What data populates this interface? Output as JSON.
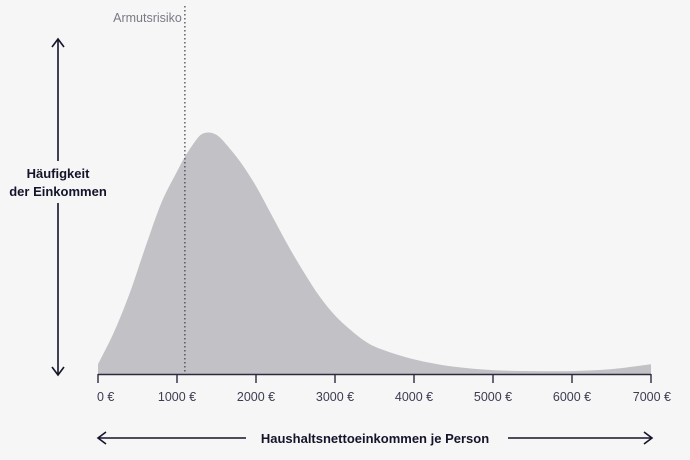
{
  "chart_data": {
    "type": "area",
    "title": "",
    "xlabel": "Haushaltsnettoeinkommen je Person",
    "ylabel_lines": [
      "Häufigkeit",
      "der Einkommen"
    ],
    "xlim": [
      0,
      7000
    ],
    "x_ticks": [
      0,
      1000,
      2000,
      3000,
      4000,
      5000,
      6000,
      7000
    ],
    "x_tick_labels": [
      "0 €",
      "1000 €",
      "2000 €",
      "3000 €",
      "4000 €",
      "5000 €",
      "6000 €",
      "7000 €"
    ],
    "x": [
      0,
      200,
      400,
      600,
      800,
      1000,
      1100,
      1200,
      1300,
      1400,
      1500,
      1600,
      1800,
      2000,
      2200,
      2400,
      2600,
      2800,
      3000,
      3200,
      3400,
      3600,
      4000,
      4500,
      5000,
      5500,
      6000,
      6500,
      7000
    ],
    "y": [
      0.04,
      0.17,
      0.33,
      0.52,
      0.7,
      0.83,
      0.89,
      0.94,
      0.98,
      0.99,
      0.98,
      0.95,
      0.87,
      0.77,
      0.65,
      0.53,
      0.42,
      0.32,
      0.24,
      0.18,
      0.13,
      0.1,
      0.06,
      0.03,
      0.016,
      0.012,
      0.012,
      0.02,
      0.04
    ],
    "grid": false,
    "legend": "none",
    "annotations": [
      {
        "text": "Armutsrisiko",
        "x": 1100,
        "style": "dotted vertical line"
      }
    ],
    "colors": {
      "fill": "#c1c1c6",
      "axis": "#2b2b3e",
      "text": "#14142a",
      "annotation": "#7a7a86",
      "background": "#f6f6f6"
    }
  }
}
